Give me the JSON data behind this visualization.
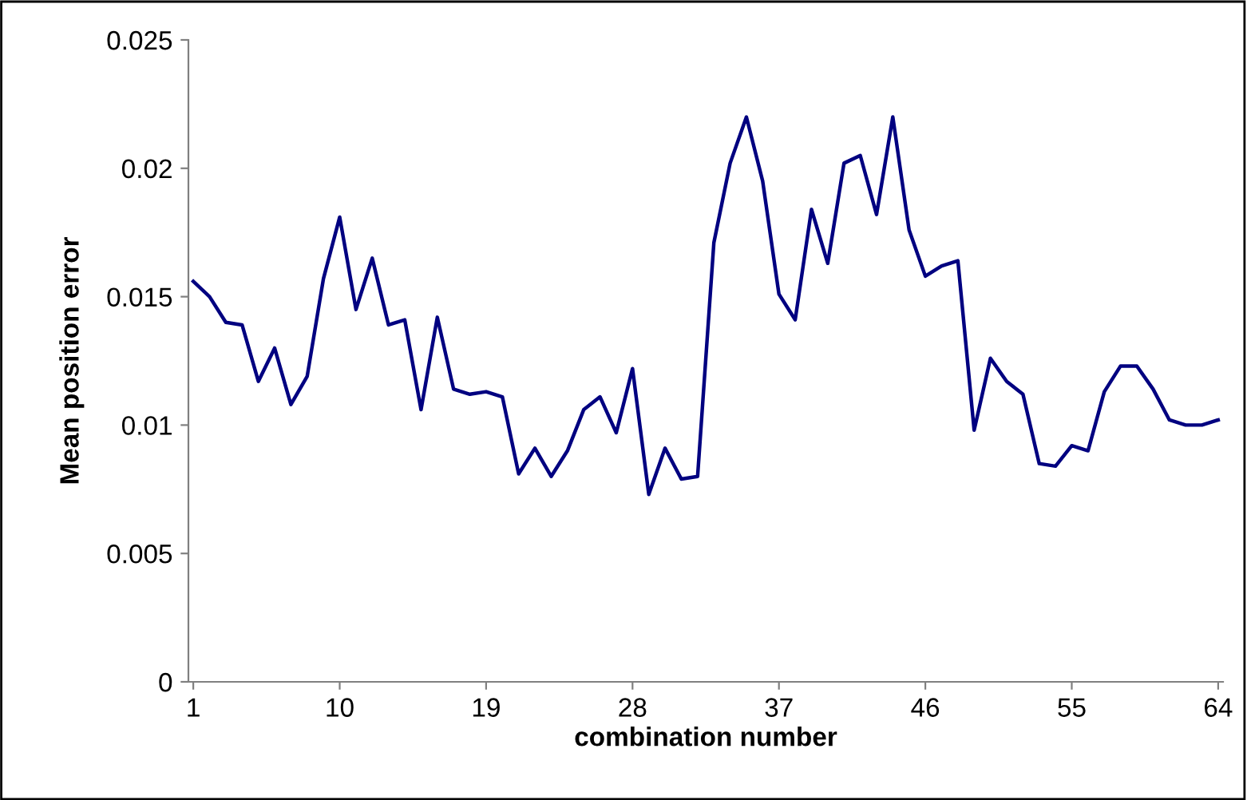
{
  "chart_data": {
    "type": "line",
    "xlabel": "combination number",
    "ylabel": "Mean position error",
    "categories": [
      "1",
      null,
      null,
      null,
      null,
      null,
      null,
      null,
      null,
      "10",
      null,
      null,
      null,
      null,
      null,
      null,
      null,
      null,
      "19",
      null,
      null,
      null,
      null,
      null,
      null,
      null,
      null,
      "28",
      null,
      null,
      null,
      null,
      null,
      null,
      null,
      null,
      "37",
      null,
      null,
      null,
      null,
      null,
      null,
      null,
      null,
      "46",
      null,
      null,
      null,
      null,
      null,
      null,
      null,
      null,
      "55",
      null,
      null,
      null,
      null,
      null,
      null,
      null,
      null,
      "64"
    ],
    "series": [
      {
        "color": "#000080",
        "values": [
          0.0156,
          0.015,
          0.014,
          0.0139,
          0.0117,
          0.013,
          0.0108,
          0.0119,
          0.0157,
          0.0181,
          0.0145,
          0.0165,
          0.0139,
          0.0141,
          0.0106,
          0.0142,
          0.0114,
          0.0112,
          0.0113,
          0.0111,
          0.0081,
          0.0091,
          0.008,
          0.009,
          0.0106,
          0.0111,
          0.0097,
          0.0122,
          0.0073,
          0.0091,
          0.0079,
          0.008,
          0.0171,
          0.0202,
          0.022,
          0.0195,
          0.0151,
          0.0141,
          0.0184,
          0.0163,
          0.0202,
          0.0205,
          0.0182,
          0.022,
          0.0176,
          0.0158,
          0.0162,
          0.0164,
          0.0098,
          0.0126,
          0.0117,
          0.0112,
          0.0085,
          0.0084,
          0.0092,
          0.009,
          0.0113,
          0.0123,
          0.0123,
          0.0114,
          0.0102,
          0.01,
          0.01,
          0.0102
        ]
      }
    ],
    "ylim": [
      0,
      0.025
    ],
    "yticks": [
      0,
      0.005,
      0.01,
      0.015,
      0.02,
      0.025
    ],
    "grid": false,
    "legend": false,
    "marker": "none",
    "line_style": "solid"
  }
}
